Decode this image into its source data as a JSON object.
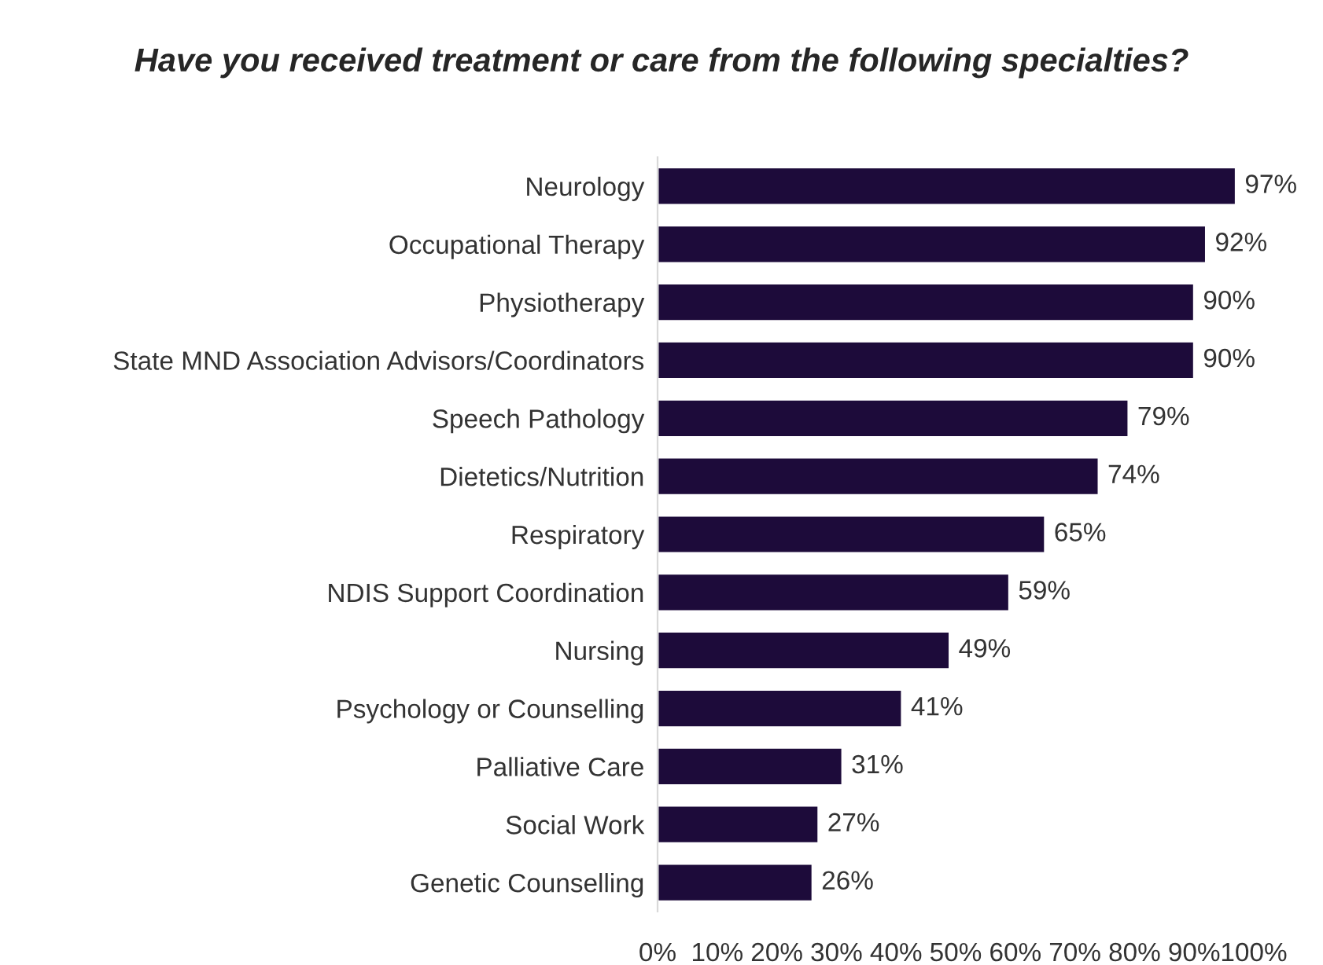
{
  "chart_data": {
    "type": "bar",
    "orientation": "horizontal",
    "title": "Have you received treatment or care from the following specialties?",
    "categories": [
      "Neurology",
      "Occupational Therapy",
      "Physiotherapy",
      "State MND Association Advisors/Coordinators",
      "Speech Pathology",
      "Dietetics/Nutrition",
      "Respiratory",
      "NDIS Support Coordination",
      "Nursing",
      "Psychology or Counselling",
      "Palliative Care",
      "Social Work",
      "Genetic Counselling"
    ],
    "values": [
      97,
      92,
      90,
      90,
      79,
      74,
      65,
      59,
      49,
      41,
      31,
      27,
      26
    ],
    "value_labels": [
      "97%",
      "92%",
      "90%",
      "90%",
      "79%",
      "74%",
      "65%",
      "59%",
      "49%",
      "41%",
      "31%",
      "27%",
      "26%"
    ],
    "color": "#1d0b3a",
    "xlim": [
      0,
      100
    ],
    "xticks": [
      {
        "value": 0,
        "label": "0%"
      },
      {
        "value": 10,
        "label": "10%"
      },
      {
        "value": 20,
        "label": "20%"
      },
      {
        "value": 30,
        "label": "30%"
      },
      {
        "value": 40,
        "label": "40%"
      },
      {
        "value": 50,
        "label": "50%"
      },
      {
        "value": 60,
        "label": "60%"
      },
      {
        "value": 70,
        "label": "70%"
      },
      {
        "value": 80,
        "label": "80%"
      },
      {
        "value": 90,
        "label": "90%"
      },
      {
        "value": 100,
        "label": "100%"
      }
    ],
    "grid": false,
    "legend": false
  }
}
